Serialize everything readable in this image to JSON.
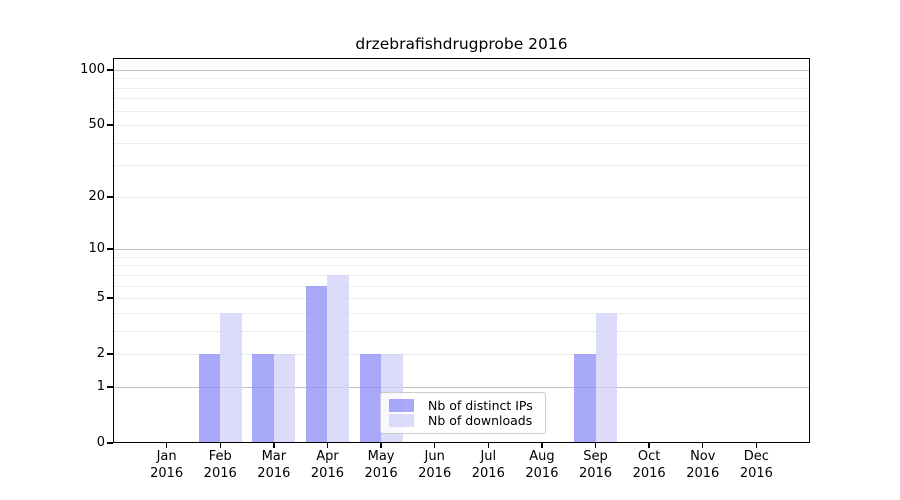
{
  "colors": {
    "background": "#ffffff",
    "text": "#000000",
    "spine": "#000000",
    "grid_strong": "#c2c2c2",
    "grid_faint": "#ececec",
    "legend_border": "#cccccc"
  },
  "chart_data": {
    "type": "bar",
    "title": "drzebrafishdrugprobe 2016",
    "categories": [
      "Jan 2016",
      "Feb 2016",
      "Mar 2016",
      "Apr 2016",
      "May 2016",
      "Jun 2016",
      "Jul 2016",
      "Aug 2016",
      "Sep 2016",
      "Oct 2016",
      "Nov 2016",
      "Dec 2016"
    ],
    "series": [
      {
        "key": "distinct-ips",
        "name": "Nb of distinct IPs",
        "color": "#a9a9fa",
        "values": [
          0,
          2,
          2,
          6,
          2,
          0,
          0,
          0,
          2,
          0,
          0,
          0
        ]
      },
      {
        "key": "downloads",
        "name": "Nb of downloads",
        "color": "#dcdcfa",
        "values": [
          0,
          4,
          2,
          7,
          2,
          0,
          0,
          0,
          4,
          0,
          0,
          0
        ]
      }
    ],
    "xlabel": "",
    "ylabel": "",
    "y_axis": {
      "scale": "log1p",
      "top_value": 116,
      "tick_values": [
        0,
        1,
        2,
        5,
        10,
        20,
        50,
        100
      ],
      "gridlines_strong": [
        1,
        10,
        100
      ],
      "gridlines_faint": [
        2,
        3,
        4,
        5,
        6,
        7,
        8,
        9,
        20,
        30,
        40,
        50,
        60,
        70,
        80,
        90
      ]
    },
    "grid": true,
    "legend_position": "lower center"
  }
}
